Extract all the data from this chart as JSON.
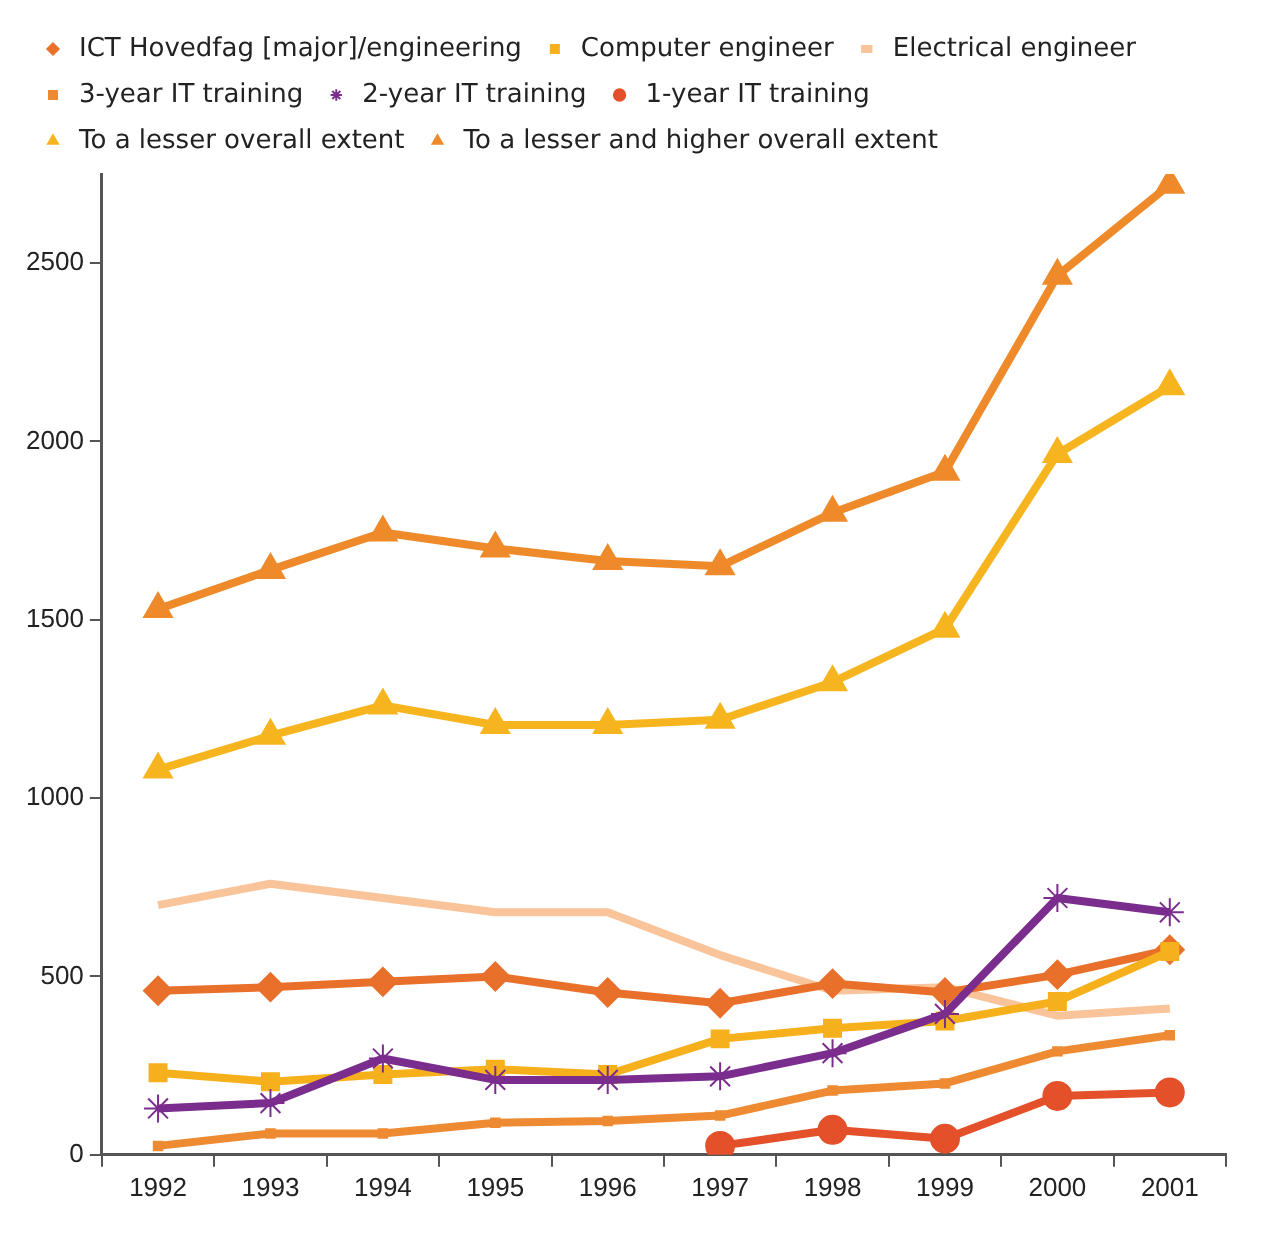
{
  "chart_data": {
    "type": "line",
    "categories": [
      "1992",
      "1993",
      "1994",
      "1995",
      "1996",
      "1997",
      "1998",
      "1999",
      "2000",
      "2001"
    ],
    "series": [
      {
        "name": "ICT Hovedfag [major]/engineering",
        "color": "#e8702a",
        "marker": "diamond",
        "values": [
          460,
          470,
          485,
          500,
          455,
          425,
          480,
          455,
          505,
          575
        ]
      },
      {
        "name": "Computer engineer",
        "color": "#f6b01c",
        "marker": "square",
        "values": [
          230,
          205,
          225,
          240,
          225,
          325,
          355,
          375,
          430,
          570
        ]
      },
      {
        "name": "Electrical engineer",
        "color": "#f9c49a",
        "marker": "none",
        "values": [
          700,
          760,
          720,
          680,
          680,
          560,
          460,
          470,
          390,
          410
        ]
      },
      {
        "name": "3-year IT training",
        "color": "#ee8a32",
        "marker": "square",
        "values": [
          25,
          60,
          60,
          90,
          95,
          110,
          180,
          200,
          290,
          335
        ]
      },
      {
        "name": "2-year IT training",
        "color": "#7b2d8e",
        "marker": "cross",
        "values": [
          130,
          145,
          270,
          210,
          210,
          220,
          285,
          395,
          720,
          680
        ]
      },
      {
        "name": "1-year IT training",
        "color": "#e4502a",
        "marker": "circle",
        "values": [
          null,
          null,
          null,
          null,
          null,
          25,
          70,
          45,
          165,
          175
        ]
      },
      {
        "name": "To a lesser overall extent",
        "color": "#f6b51e",
        "marker": "triangle",
        "values": [
          1080,
          1175,
          1260,
          1205,
          1205,
          1220,
          1325,
          1475,
          1965,
          2155
        ]
      },
      {
        "name": "To a lesser and higher overall extent",
        "color": "#ee8a2a",
        "marker": "triangle",
        "values": [
          1530,
          1640,
          1745,
          1700,
          1665,
          1650,
          1800,
          1915,
          2465,
          2720
        ]
      }
    ],
    "ylim": [
      0,
      2750
    ],
    "yticks": [
      0,
      500,
      1000,
      1500,
      2000,
      2500
    ],
    "grid": false,
    "legend": "top"
  }
}
